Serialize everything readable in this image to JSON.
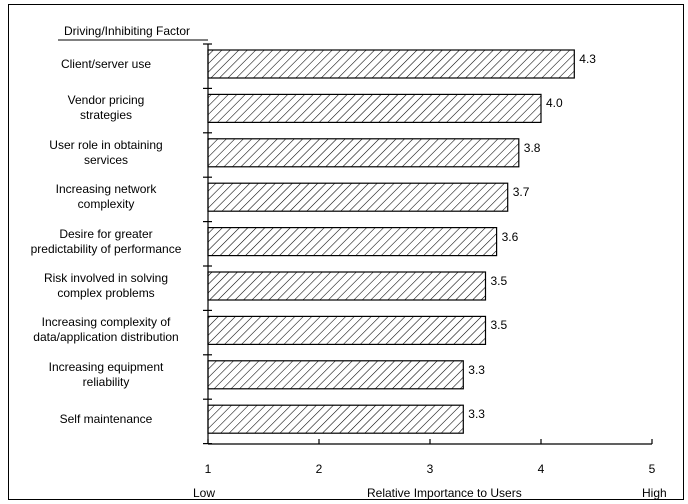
{
  "chart_data": {
    "type": "bar",
    "orientation": "horizontal",
    "category_header": "Driving/Inhibiting Factor",
    "categories": [
      "Client/server use",
      "Vendor pricing strategies",
      "User role in obtaining services",
      "Increasing network complexity",
      "Desire for greater predictability of performance",
      "Risk involved in solving complex problems",
      "Increasing complexity of data/application distribution",
      "Increasing equipment reliability",
      "Self maintenance"
    ],
    "category_lines": [
      [
        "Client/server use"
      ],
      [
        "Vendor pricing",
        "strategies"
      ],
      [
        "User role in  obtaining",
        "services"
      ],
      [
        "Increasing  network",
        "complexity"
      ],
      [
        "Desire for greater",
        "predictability of  performance"
      ],
      [
        "Risk involved in solving",
        "complex problems"
      ],
      [
        "Increasing complexity  of",
        "data/application distribution"
      ],
      [
        "Increasing equipment",
        "reliability"
      ],
      [
        "Self maintenance"
      ]
    ],
    "values": [
      4.3,
      4.0,
      3.8,
      3.7,
      3.6,
      3.5,
      3.5,
      3.3,
      3.3
    ],
    "value_labels": [
      "4.3",
      "4.0",
      "3.8",
      "3.7",
      "3.6",
      "3.5",
      "3.5",
      "3.3",
      "3.3"
    ],
    "xlim": [
      1,
      5
    ],
    "xticks": [
      "1",
      "2",
      "3",
      "4",
      "5"
    ],
    "xlabel": "Relative Importance to Users",
    "x_low_label": "Low",
    "x_high_label": "High",
    "bar_fill": "hatched",
    "grid": false
  }
}
